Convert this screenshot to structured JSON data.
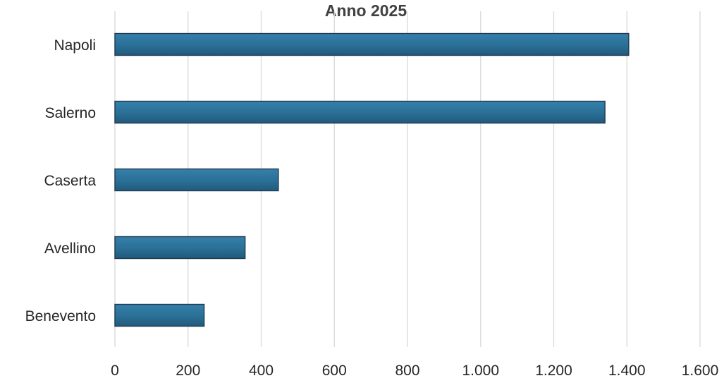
{
  "chart_data": {
    "type": "bar",
    "orientation": "horizontal",
    "title": "Anno 2025",
    "xlabel": "",
    "ylabel": "",
    "categories": [
      "Napoli",
      "Salerno",
      "Caserta",
      "Avellino",
      "Benevento"
    ],
    "values": [
      1405,
      1340,
      447,
      356,
      244
    ],
    "xlim": [
      0,
      1600
    ],
    "x_ticks": [
      0,
      200,
      400,
      600,
      800,
      1000,
      1200,
      1400,
      1600
    ],
    "x_tick_labels": [
      "0",
      "200",
      "400",
      "600",
      "800",
      "1.000",
      "1.200",
      "1.400",
      "1.600"
    ],
    "grid": "vertical",
    "legend": "none",
    "bar_color": "#2a6f96",
    "bar_outline_color": "#1f3b52"
  }
}
